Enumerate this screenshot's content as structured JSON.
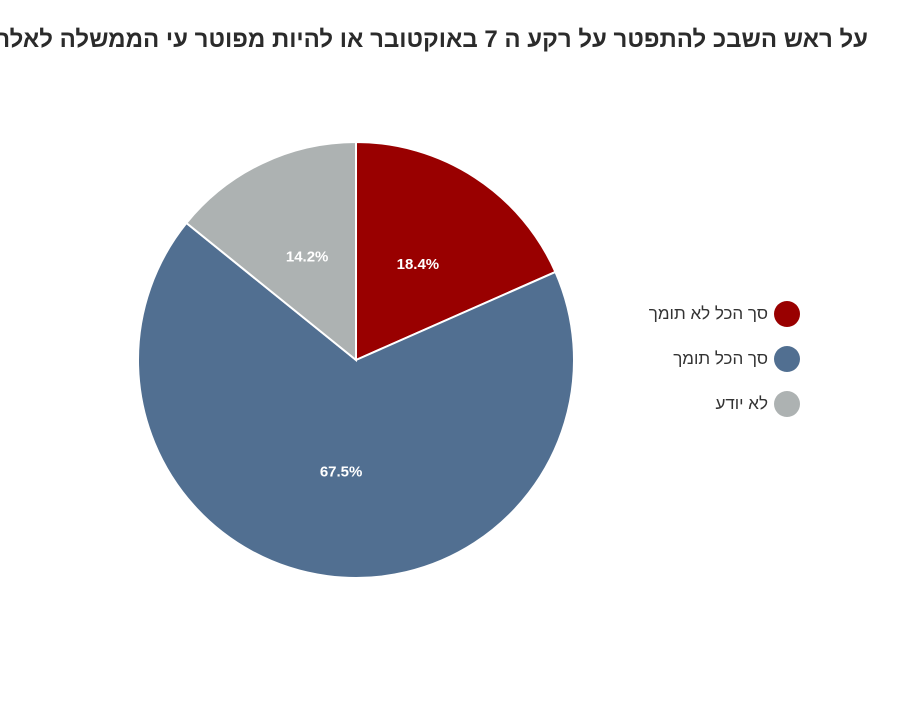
{
  "chart_data": {
    "type": "pie",
    "title": "על ראש השבכ להתפטר על רקע ה 7 באוקטובר או להיות מפוטר עי הממשלה לאלתר",
    "slices": [
      {
        "name": "סך הכל לא תומך",
        "value": 18.4,
        "label": "18.4%",
        "color": "#990000"
      },
      {
        "name": "סך הכל תומך",
        "value": 67.5,
        "label": "67.5%",
        "color": "#516f91"
      },
      {
        "name": "לא יודע",
        "value": 14.2,
        "label": "14.2%",
        "color": "#adb2b2"
      }
    ],
    "legend_position": "right"
  }
}
